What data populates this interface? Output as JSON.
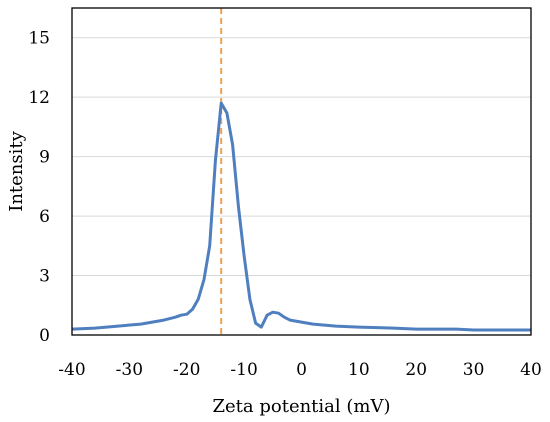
{
  "chart_data": {
    "type": "line",
    "xlabel": "Zeta potential (mV)",
    "ylabel": "Intensity",
    "xlim": [
      -40,
      40
    ],
    "ylim": [
      0,
      16.5
    ],
    "xticks": [
      -40,
      -30,
      -20,
      -10,
      0,
      10,
      20,
      30,
      40
    ],
    "yticks": [
      0,
      3,
      6,
      9,
      12,
      15
    ],
    "grid": "horizontal",
    "legend": "none",
    "colors": {
      "series": "#4f7fbf",
      "marker": "#f0a050",
      "grid": "#d9d9d9",
      "frame": "#000000"
    },
    "reference_line": {
      "x": -14,
      "style": "dashed"
    },
    "series": [
      {
        "x": [
          -40,
          -36,
          -32,
          -28,
          -24,
          -22,
          -21,
          -20,
          -19,
          -18,
          -17,
          -16,
          -15,
          -14,
          -13,
          -12,
          -11,
          -10,
          -9,
          -8,
          -7,
          -6,
          -5,
          -4,
          -3,
          -2,
          0,
          2,
          4,
          6,
          10,
          16,
          20,
          27,
          30,
          40
        ],
        "y": [
          0.3,
          0.35,
          0.45,
          0.55,
          0.75,
          0.9,
          1.0,
          1.05,
          1.3,
          1.8,
          2.8,
          4.5,
          8.8,
          11.7,
          11.2,
          9.6,
          6.5,
          4.0,
          1.8,
          0.6,
          0.4,
          1.0,
          1.15,
          1.1,
          0.9,
          0.75,
          0.65,
          0.55,
          0.5,
          0.45,
          0.4,
          0.35,
          0.3,
          0.3,
          0.25,
          0.25
        ]
      }
    ]
  }
}
